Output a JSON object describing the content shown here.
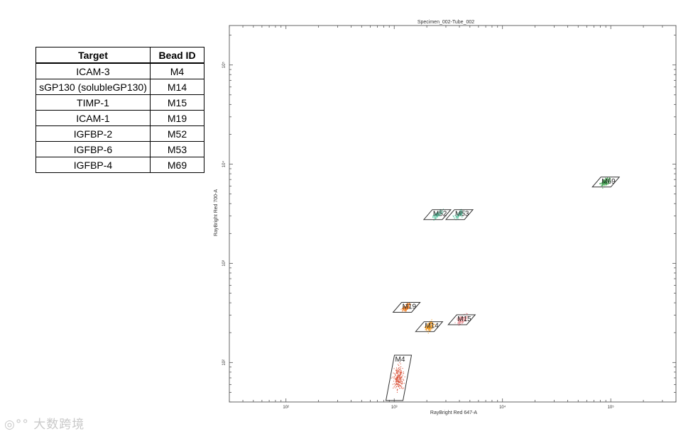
{
  "table": {
    "headers": [
      "Target",
      "Bead ID"
    ],
    "rows": [
      [
        "ICAM-3",
        "M4"
      ],
      [
        "sGP130 (solubleGP130)",
        "M14"
      ],
      [
        "TIMP-1",
        "M15"
      ],
      [
        "ICAM-1",
        "M19"
      ],
      [
        "IGFBP-2",
        "M52"
      ],
      [
        "IGFBP-6",
        "M53"
      ],
      [
        "IGFBP-4",
        "M69"
      ]
    ]
  },
  "watermark": "大数跨境",
  "chart_data": {
    "type": "scatter",
    "title": "Specimen_002-Tube_002",
    "xlabel": "RayBright Red 647-A",
    "ylabel": "RayBright Red 700-A",
    "x_scale": "log",
    "y_scale": "log",
    "xlim": [
      30,
      400000
    ],
    "ylim": [
      40,
      250000
    ],
    "x_ticks": [
      {
        "value": 100,
        "label": "10²"
      },
      {
        "value": 1000,
        "label": "10³"
      },
      {
        "value": 10000,
        "label": "10⁴"
      },
      {
        "value": 100000,
        "label": "10⁵"
      }
    ],
    "y_ticks": [
      {
        "value": 100,
        "label": "10²"
      },
      {
        "value": 1000,
        "label": "10³"
      },
      {
        "value": 10000,
        "label": "10⁴"
      },
      {
        "value": 100000,
        "label": "10⁵"
      }
    ],
    "grid": false,
    "gates": [
      {
        "name": "M4",
        "x": 1100,
        "y": 70,
        "color": "#d9533a",
        "spread_x": 0.07,
        "spread_y": 0.16,
        "n": 200
      },
      {
        "name": "M14",
        "x": 2100,
        "y": 230,
        "color": "#f39a1f",
        "spread_x": 0.06,
        "spread_y": 0.05,
        "n": 130
      },
      {
        "name": "M15",
        "x": 4200,
        "y": 270,
        "color": "#e8868c",
        "spread_x": 0.07,
        "spread_y": 0.05,
        "n": 110
      },
      {
        "name": "M19",
        "x": 1300,
        "y": 360,
        "color": "#f07c20",
        "spread_x": 0.05,
        "spread_y": 0.04,
        "n": 120
      },
      {
        "name": "M52",
        "x": 2500,
        "y": 3100,
        "color": "#5ec9a6",
        "spread_x": 0.07,
        "spread_y": 0.03,
        "n": 100
      },
      {
        "name": "M53",
        "x": 4000,
        "y": 3100,
        "color": "#5ec9a6",
        "spread_x": 0.07,
        "spread_y": 0.03,
        "n": 100
      },
      {
        "name": "M69",
        "x": 90000,
        "y": 6600,
        "color": "#2e9e3f",
        "spread_x": 0.06,
        "spread_y": 0.04,
        "n": 120
      }
    ]
  }
}
